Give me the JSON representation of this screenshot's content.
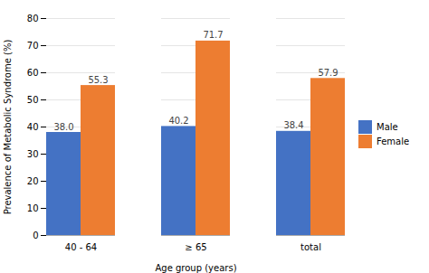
{
  "chart_data": {
    "type": "bar",
    "categories": [
      "40 - 64",
      "≥ 65",
      "total"
    ],
    "series": [
      {
        "name": "Male",
        "color": "#4472C4",
        "values": [
          38.0,
          40.2,
          38.4
        ],
        "value_labels": [
          "38.0",
          "40.2",
          "38.4"
        ]
      },
      {
        "name": "Female",
        "color": "#ED7D31",
        "values": [
          55.3,
          71.7,
          57.9
        ],
        "value_labels": [
          "55.3",
          "71.7",
          "57.9"
        ]
      }
    ],
    "xlabel": "Age group (years)",
    "ylabel": "Prevalence of Metabolic Syndrome (%)",
    "ylim": [
      0,
      80
    ],
    "yticks": [
      0,
      10,
      20,
      30,
      40,
      50,
      60,
      70,
      80
    ],
    "grid": true,
    "legend": "right",
    "data_labels": true
  }
}
